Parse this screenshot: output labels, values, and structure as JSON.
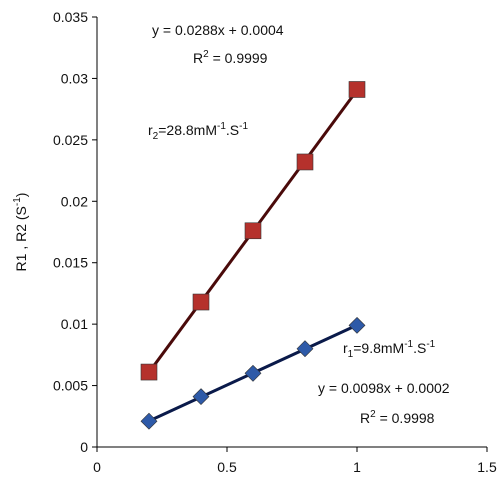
{
  "chart_data": {
    "type": "scatter",
    "y_label": [
      {
        "text": "R1 , R2 (S"
      },
      {
        "text": "-1",
        "shift": "super"
      },
      {
        "text": ")"
      }
    ],
    "xlim": [
      0,
      1.5
    ],
    "xticks": [
      0,
      0.5,
      1,
      1.5
    ],
    "ylim": [
      0,
      0.035
    ],
    "yticks": [
      0,
      0.005,
      0.01,
      0.015,
      0.02,
      0.025,
      0.03,
      0.035
    ],
    "grid": false,
    "trendline": true,
    "series": [
      {
        "color": "#b5312c",
        "line_color": "#4a0a0a",
        "marker": "square",
        "x": [
          0.2,
          0.4,
          0.6,
          0.8,
          1.0
        ],
        "values": [
          0.0061,
          0.0118,
          0.0176,
          0.0232,
          0.0291
        ]
      },
      {
        "color": "#2e5aa8",
        "line_color": "#0a1a4a",
        "marker": "diamond",
        "x": [
          0.2,
          0.4,
          0.6,
          0.8,
          1.0
        ],
        "values": [
          0.0021,
          0.0041,
          0.006,
          0.008,
          0.0099
        ]
      }
    ],
    "annotations": [
      [
        {
          "text": "y = 0.0288x + 0.0004"
        }
      ],
      [
        {
          "text": "R"
        },
        {
          "text": "2",
          "shift": "super"
        },
        {
          "text": " = 0.9999"
        }
      ],
      [
        {
          "text": "r"
        },
        {
          "text": "2",
          "shift": "sub"
        },
        {
          "text": "=28.8mM"
        },
        {
          "text": "-1",
          "shift": "super"
        },
        {
          "text": ".S"
        },
        {
          "text": "-1",
          "shift": "super"
        }
      ],
      [
        {
          "text": "r"
        },
        {
          "text": "1",
          "shift": "sub"
        },
        {
          "text": "=9.8mM"
        },
        {
          "text": "-1",
          "shift": "super"
        },
        {
          "text": ".S"
        },
        {
          "text": "-1",
          "shift": "super"
        }
      ],
      [
        {
          "text": "y = 0.0098x + 0.0002"
        }
      ],
      [
        {
          "text": "R"
        },
        {
          "text": "2",
          "shift": "super"
        },
        {
          "text": " = 0.9998"
        }
      ]
    ]
  }
}
